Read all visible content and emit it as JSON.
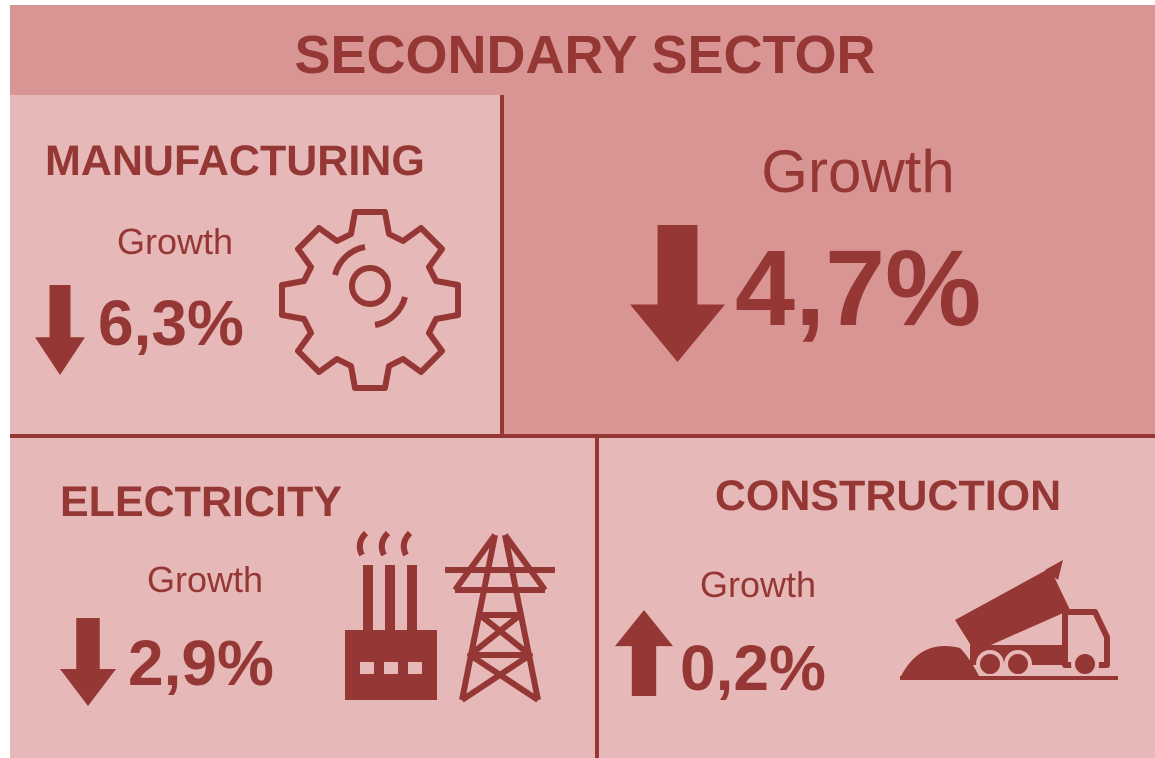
{
  "title": "SECONDARY SECTOR",
  "overall": {
    "label": "Growth",
    "value": "4,7%",
    "trend": "down"
  },
  "sectors": [
    {
      "name": "MANUFACTURING",
      "label": "Growth",
      "value": "6,3%",
      "trend": "down"
    },
    {
      "name": "ELECTRICITY",
      "label": "Growth",
      "value": "2,9%",
      "trend": "down"
    },
    {
      "name": "CONSTRUCTION",
      "label": "Growth",
      "value": "0,2%",
      "trend": "up"
    }
  ]
}
